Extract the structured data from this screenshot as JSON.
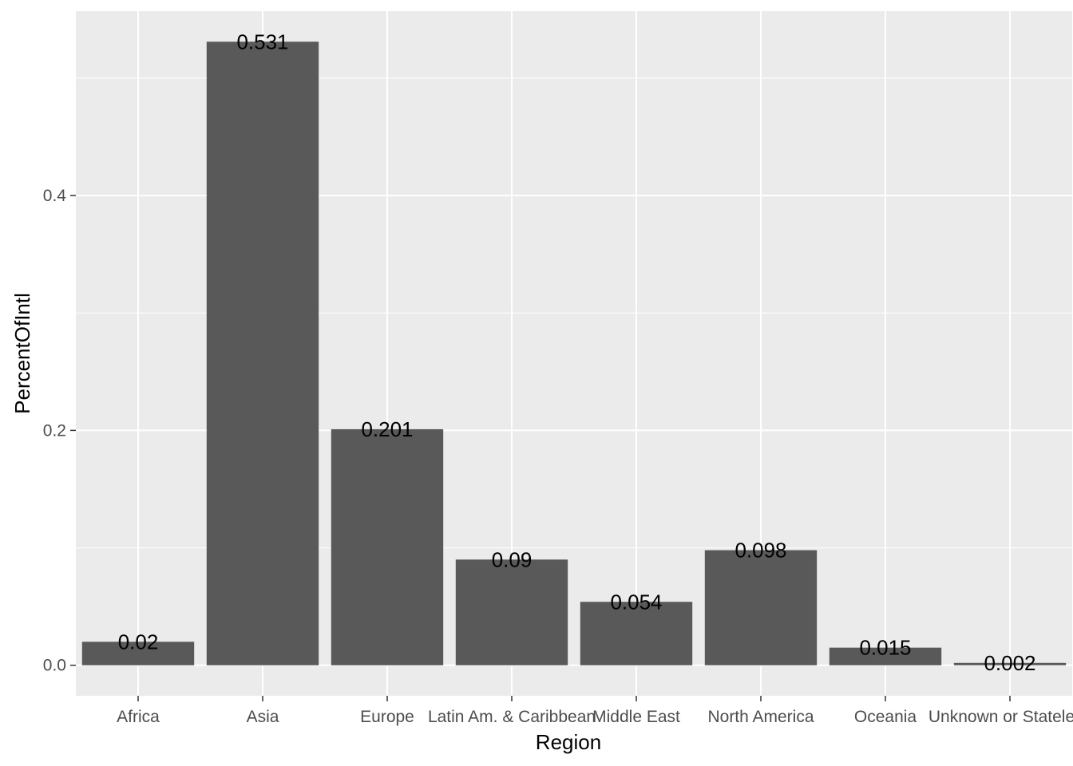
{
  "chart_data": {
    "type": "bar",
    "title": "",
    "xlabel": "Region",
    "ylabel": "PercentOfIntl",
    "categories": [
      "Africa",
      "Asia",
      "Europe",
      "Latin Am. & Caribbean",
      "Middle East",
      "North America",
      "Oceania",
      "Unknown or Stateless"
    ],
    "values": [
      0.02,
      0.531,
      0.201,
      0.09,
      0.054,
      0.098,
      0.015,
      0.002
    ],
    "data_labels": [
      "0.02",
      "0.531",
      "0.201",
      "0.09",
      "0.054",
      "0.098",
      "0.015",
      "0.002"
    ],
    "yticks": [
      0.0,
      0.2,
      0.4
    ],
    "ytick_labels": [
      "0.0",
      "0.2",
      "0.4"
    ],
    "ylim": [
      -0.026,
      0.557
    ],
    "grid": true,
    "legend": "none",
    "colors": {
      "panel": "#ebebeb",
      "grid": "#ffffff",
      "bar": "#595959",
      "tick_text": "#4d4d4d",
      "tick_mark": "#333333"
    }
  }
}
